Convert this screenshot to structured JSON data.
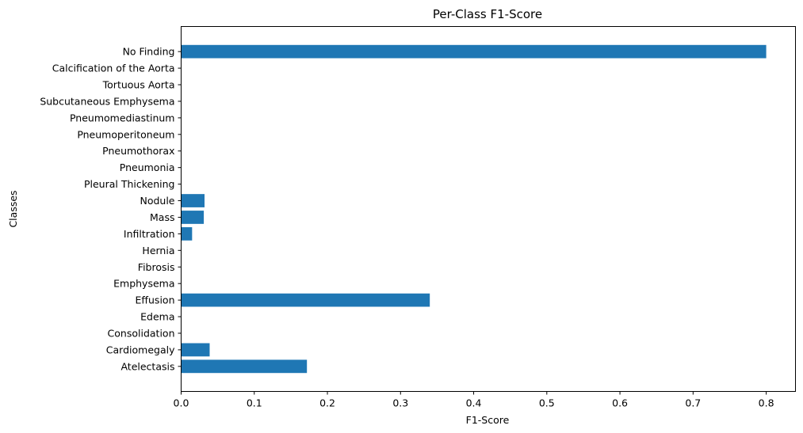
{
  "chart_data": {
    "type": "bar",
    "orientation": "horizontal",
    "title": "Per-Class F1-Score",
    "xlabel": "F1-Score",
    "ylabel": "Classes",
    "xlim": [
      0,
      0.84
    ],
    "xticks": [
      0,
      0.1,
      0.2,
      0.3,
      0.4,
      0.5,
      0.6,
      0.7,
      0.8
    ],
    "xtick_labels": [
      "0.0",
      "0.1",
      "0.2",
      "0.3",
      "0.4",
      "0.5",
      "0.6",
      "0.7",
      "0.8"
    ],
    "categories": [
      "Atelectasis",
      "Cardiomegaly",
      "Consolidation",
      "Edema",
      "Effusion",
      "Emphysema",
      "Fibrosis",
      "Hernia",
      "Infiltration",
      "Mass",
      "Nodule",
      "Pleural Thickening",
      "Pneumonia",
      "Pneumothorax",
      "Pneumoperitoneum",
      "Pneumomediastinum",
      "Subcutaneous Emphysema",
      "Tortuous Aorta",
      "Calcification of the Aorta",
      "No Finding"
    ],
    "values": [
      0.172,
      0.039,
      0,
      0,
      0.34,
      0,
      0,
      0,
      0.015,
      0.031,
      0.032,
      0,
      0,
      0,
      0,
      0,
      0,
      0,
      0,
      0.8
    ],
    "bar_color": "#1f77b4",
    "grid": false,
    "legend": "none"
  }
}
